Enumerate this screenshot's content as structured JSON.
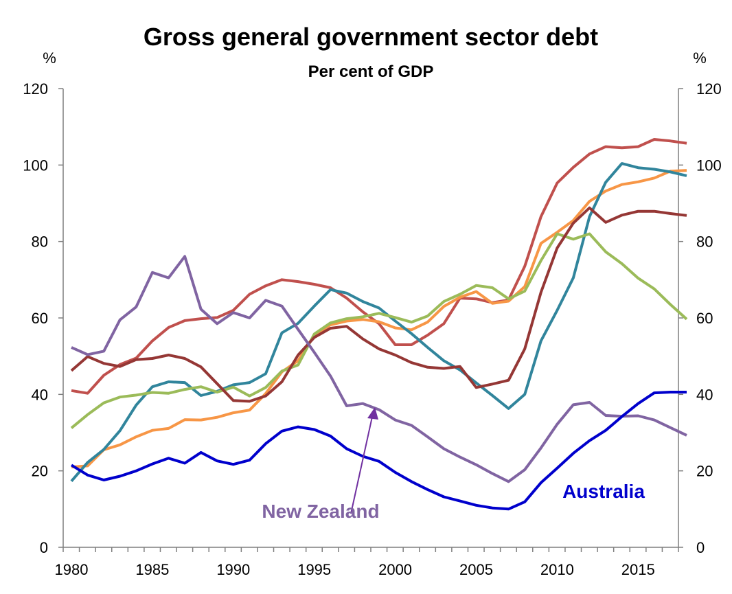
{
  "chart_data": {
    "type": "line",
    "title": "Gross general government sector debt",
    "subtitle": "Per cent of GDP",
    "y_unit_left": "%",
    "y_unit_right": "%",
    "xlim": [
      1980,
      2018
    ],
    "ylim": [
      0,
      120
    ],
    "x_ticks": [
      1980,
      1985,
      1990,
      1995,
      2000,
      2005,
      2010,
      2015
    ],
    "y_ticks": [
      0,
      20,
      40,
      60,
      80,
      100,
      120
    ],
    "grid": false,
    "legend": "none",
    "x": [
      1980,
      1981,
      1982,
      1983,
      1984,
      1985,
      1986,
      1987,
      1988,
      1989,
      1990,
      1991,
      1992,
      1993,
      1994,
      1995,
      1996,
      1997,
      1998,
      1999,
      2000,
      2001,
      2002,
      2003,
      2004,
      2005,
      2006,
      2007,
      2008,
      2009,
      2010,
      2011,
      2012,
      2013,
      2014,
      2015,
      2016,
      2017,
      2018
    ],
    "series": [
      {
        "color": "#c0504d",
        "values": [
          41,
          40.3,
          45,
          47.8,
          49.5,
          54,
          57.5,
          59.3,
          59.8,
          60.1,
          62,
          66.2,
          68.4,
          70,
          69.5,
          68.8,
          67.9,
          65.2,
          61.6,
          58.5,
          53,
          53,
          55.5,
          58.5,
          65.2,
          65,
          64,
          64.7,
          73.5,
          86.5,
          95.3,
          99.4,
          102.9,
          104.8,
          104.5,
          104.8,
          106.7,
          106.3,
          105.7
        ]
      },
      {
        "color": "#f79646",
        "values": [
          21,
          21.3,
          25.5,
          26.8,
          28.9,
          30.6,
          31.1,
          33.4,
          33.3,
          34,
          35.2,
          35.9,
          40.2,
          45.9,
          48.8,
          55.5,
          58.2,
          59.2,
          59.6,
          59,
          57.4,
          56.9,
          58.9,
          63,
          65.4,
          66.9,
          63.8,
          64.4,
          68.2,
          79.5,
          82.4,
          85.5,
          90.5,
          93.2,
          94.9,
          95.6,
          96.6,
          98.4,
          98.6
        ]
      },
      {
        "color": "#31859c",
        "values": [
          17.3,
          22.2,
          25.6,
          30.5,
          37.2,
          42,
          43.3,
          43.1,
          39.7,
          40.8,
          42.5,
          43.1,
          45.4,
          56.1,
          58.6,
          63.1,
          67.4,
          66.5,
          64.3,
          62.6,
          59.2,
          55.9,
          52.3,
          48.8,
          46.4,
          43,
          39.7,
          36.3,
          40,
          54,
          62,
          70.5,
          86.5,
          95.5,
          100.4,
          99.3,
          98.9,
          98.2,
          97.2
        ]
      },
      {
        "color": "#9bbb59",
        "values": [
          31.2,
          34.7,
          37.8,
          39.3,
          39.8,
          40.5,
          40.3,
          41.3,
          42,
          40.6,
          41.9,
          39.6,
          41.8,
          46.1,
          47.7,
          55.8,
          58.7,
          59.8,
          60.3,
          61.2,
          60.1,
          58.9,
          60.5,
          64.3,
          66.2,
          68.5,
          67.9,
          65,
          67,
          75,
          82,
          80.6,
          82,
          77.3,
          74.2,
          70.4,
          67.6,
          63.5,
          59.7
        ]
      },
      {
        "color": "#953735",
        "values": [
          46.2,
          49.9,
          48.1,
          47.3,
          49.1,
          49.4,
          50.3,
          49.4,
          47.2,
          42.8,
          38.4,
          38.2,
          39.6,
          43.3,
          50.3,
          54.9,
          57.3,
          57.8,
          54.5,
          51.9,
          50.3,
          48.3,
          47.1,
          46.8,
          47.3,
          41.8,
          42.7,
          43.7,
          51.9,
          66.7,
          78.3,
          84.8,
          88.8,
          85,
          86.9,
          87.9,
          87.9,
          87.3,
          86.8
        ]
      },
      {
        "name": "New Zealand",
        "color": "#8064a2",
        "values": [
          52.3,
          50.4,
          51.3,
          59.5,
          62.9,
          71.9,
          70.5,
          76.1,
          62.3,
          58.5,
          61.4,
          60,
          64.6,
          63.1,
          57,
          51,
          44.8,
          37,
          37.6,
          36,
          33.3,
          31.9,
          28.9,
          25.8,
          23.6,
          21.6,
          19.3,
          17.2,
          20.3,
          26,
          32.2,
          37.3,
          37.9,
          34.5,
          34.3,
          34.4,
          33.3,
          31.3,
          29.3
        ]
      },
      {
        "name": "Australia",
        "color": "#0000cc",
        "values": [
          21.5,
          18.9,
          17.6,
          18.6,
          20,
          21.8,
          23.3,
          22,
          24.8,
          22.6,
          21.7,
          22.8,
          27.1,
          30.4,
          31.5,
          30.8,
          29.1,
          25.8,
          23.8,
          22.5,
          19.6,
          17.2,
          15.1,
          13.2,
          12.1,
          11,
          10.3,
          10,
          11.9,
          16.9,
          20.7,
          24.6,
          27.9,
          30.6,
          34.2,
          37.6,
          40.4,
          40.6,
          40.6
        ]
      }
    ],
    "annotations": [
      {
        "text": "New Zealand",
        "series": "New Zealand",
        "color": "#8064a2",
        "arrow_to": [
          1999,
          36.3
        ]
      },
      {
        "text": "Australia",
        "series": "Australia",
        "color": "#0000cc"
      }
    ]
  }
}
